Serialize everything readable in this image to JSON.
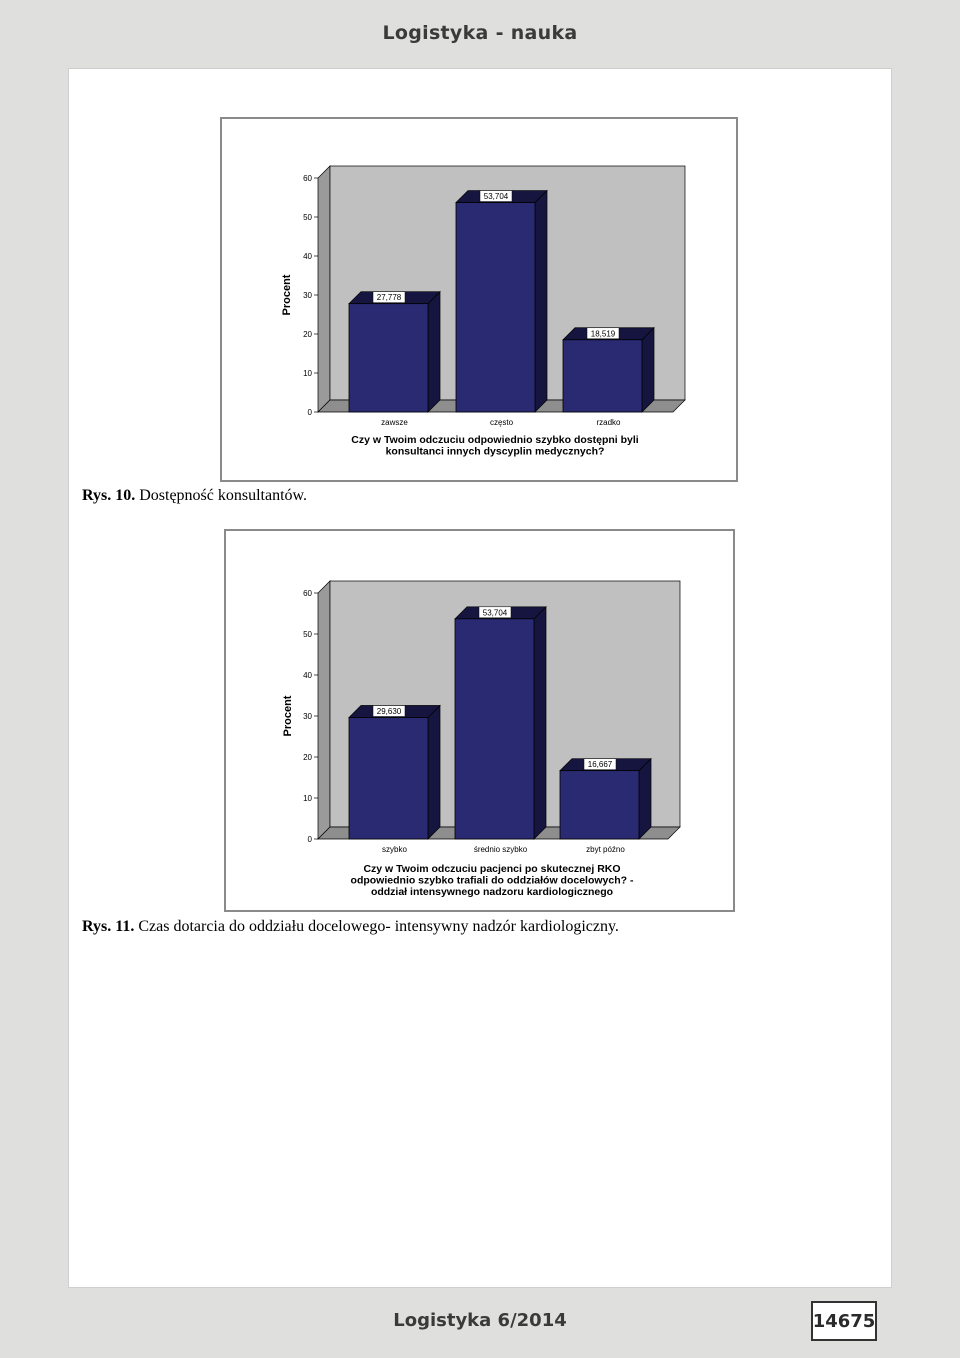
{
  "header": {
    "title": "Logistyka - nauka"
  },
  "footer": {
    "journal": "Logistyka 6/2014",
    "page_number": "14675"
  },
  "figures": [
    {
      "label": "Rys. 10.",
      "caption": "Dostępność konsultantów."
    },
    {
      "label": "Rys. 11.",
      "caption": "Czas dotarcia do oddziału docelowego- intensywny nadzór kardiologiczny."
    }
  ],
  "colors": {
    "bar": "#2a2a72",
    "bar_side": "#15153f",
    "plot_bg": "#c0c0c0",
    "floor": "#8e8e8e"
  },
  "chart_data": [
    {
      "type": "bar",
      "categories": [
        "zawsze",
        "często",
        "rzadko"
      ],
      "values": [
        27.778,
        53.704,
        18.519
      ],
      "data_labels": [
        "27,778",
        "53,704",
        "18,519"
      ],
      "title": "",
      "xlabel": [
        "Czy w Twoim odczuciu odpowiednio szybko dostępni byli",
        "konsultanci innych dyscyplin medycznych?"
      ],
      "ylabel": "Procent",
      "yticks": [
        "0",
        "10",
        "20",
        "30",
        "40",
        "50",
        "60"
      ],
      "ylim": [
        0,
        60
      ],
      "grid": false,
      "legend": "none"
    },
    {
      "type": "bar",
      "categories": [
        "szybko",
        "średnio szybko",
        "zbyt późno"
      ],
      "values": [
        29.63,
        53.704,
        16.667
      ],
      "data_labels": [
        "29,630",
        "53,704",
        "16,667"
      ],
      "title": "",
      "xlabel": [
        "Czy w Twoim odczuciu pacjenci po skutecznej RKO",
        "odpowiednio szybko trafiali do oddziałów docelowych? -",
        "oddział intensywnego nadzoru kardiologicznego"
      ],
      "ylabel": "Procent",
      "yticks": [
        "0",
        "10",
        "20",
        "30",
        "40",
        "50",
        "60"
      ],
      "ylim": [
        0,
        60
      ],
      "grid": false,
      "legend": "none"
    }
  ]
}
